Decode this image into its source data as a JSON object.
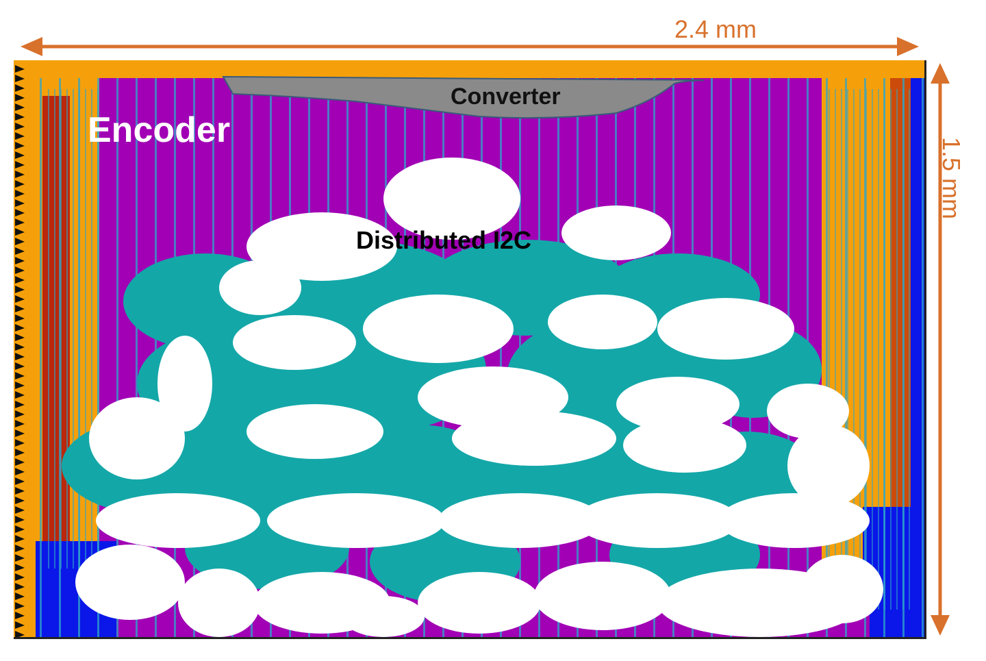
{
  "dimensions": {
    "width_label": "2.4 mm",
    "height_label": "1.5 mm",
    "color": "#d8712c"
  },
  "regions": {
    "encoder_label": "Encoder",
    "converter_label": "Converter",
    "i2c_label": "Distributed I2C"
  },
  "colors": {
    "magenta": "#a100b4",
    "teal": "#14a7a8",
    "orange": "#f5a00a",
    "dark_red": "#b0120a",
    "blue": "#0a17e8",
    "gray": "#8a8a8a",
    "pad_black": "#111111",
    "stripe": "#2fa6c9"
  }
}
